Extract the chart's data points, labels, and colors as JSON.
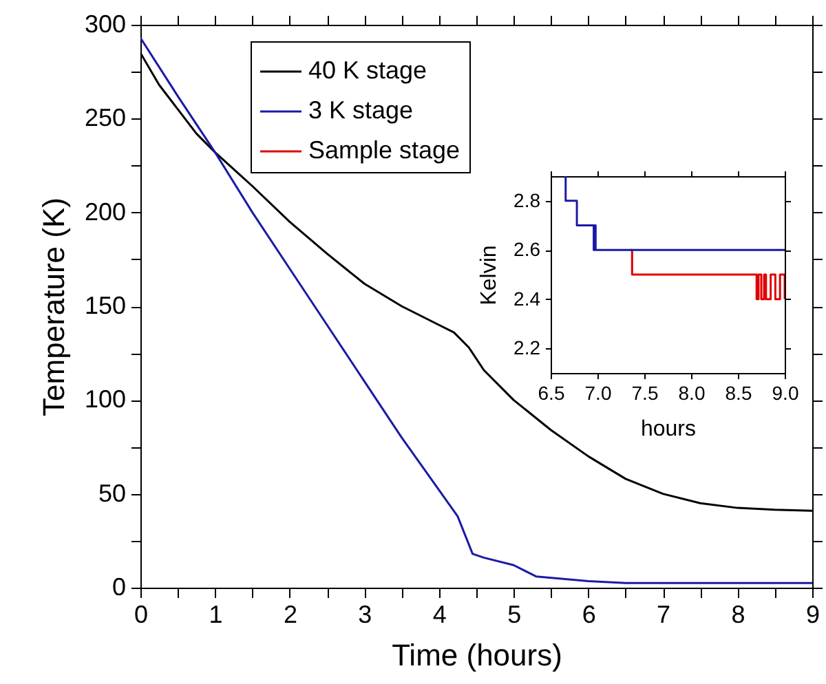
{
  "chart_data": [
    {
      "type": "line",
      "xlabel": "Time (hours)",
      "ylabel": "Temperature (K)",
      "xlim": [
        0,
        9
      ],
      "ylim": [
        0,
        300
      ],
      "xticks": [
        0,
        {
          "value": 0.5,
          "label": null
        },
        1,
        {
          "value": 1.5,
          "label": null
        },
        2,
        {
          "value": 2.5,
          "label": null
        },
        3,
        {
          "value": 3.5,
          "label": null
        },
        4,
        {
          "value": 4.5,
          "label": null
        },
        5,
        {
          "value": 5.5,
          "label": null
        },
        6,
        {
          "value": 6.5,
          "label": null
        },
        7,
        {
          "value": 7.5,
          "label": null
        },
        8,
        {
          "value": 8.5,
          "label": null
        },
        9
      ],
      "yticks": [
        0,
        {
          "value": 25,
          "label": null
        },
        50,
        {
          "value": 75,
          "label": null
        },
        100,
        {
          "value": 125,
          "label": null
        },
        150,
        {
          "value": 175,
          "label": null
        },
        200,
        {
          "value": 225,
          "label": null
        },
        250,
        {
          "value": 275,
          "label": null
        },
        300
      ],
      "legend": "top left",
      "series": [
        {
          "name": "40 K stage",
          "color": "#000000",
          "x": [
            0,
            0.25,
            0.5,
            0.75,
            1,
            1.5,
            2,
            2.5,
            3,
            3.5,
            4,
            4.2,
            4.4,
            4.6,
            5,
            5.5,
            6,
            6.5,
            7,
            7.5,
            8,
            8.5,
            9
          ],
          "values": [
            285,
            268,
            255,
            242,
            232,
            214,
            195,
            178,
            162,
            150,
            140,
            136,
            128,
            116,
            100,
            84,
            70,
            58,
            50,
            45,
            42.5,
            41.5,
            41
          ]
        },
        {
          "name": "3 K stage",
          "color": "#1a1aa6",
          "x": [
            0,
            0.5,
            1,
            1.5,
            2,
            2.5,
            3,
            3.5,
            4,
            4.25,
            4.35,
            4.45,
            4.6,
            5,
            5.3,
            6,
            6.5,
            7,
            9
          ],
          "values": [
            293,
            262,
            232,
            200,
            170,
            140,
            110,
            80,
            52,
            38,
            28,
            18,
            16,
            12,
            6,
            3.5,
            2.5,
            2.5,
            2.5
          ]
        },
        {
          "name": "Sample stage",
          "color": "#e00000"
        }
      ]
    },
    {
      "type": "step",
      "xlabel": "hours",
      "ylabel": "Kelvin",
      "xlim": [
        6.5,
        9
      ],
      "ylim": [
        2.1,
        2.9
      ],
      "xticks": [
        6.5,
        {
          "value": 7,
          "label": "7.0"
        },
        7.5,
        {
          "value": 8,
          "label": "8.0"
        },
        8.5,
        {
          "value": 9,
          "label": "9.0"
        }
      ],
      "yticks": [
        2.2,
        2.4,
        2.6,
        2.8
      ],
      "series": [
        {
          "color": "#e00000",
          "x": [
            7.35,
            7.37,
            8.7,
            8.72,
            8.75,
            8.78,
            8.8,
            8.85,
            8.9,
            8.95,
            9.0
          ],
          "values": [
            2.6,
            2.5,
            2.4,
            2.5,
            2.4,
            2.5,
            2.4,
            2.5,
            2.4,
            2.5,
            2.4
          ]
        },
        {
          "color": "#1a1aa6",
          "x": [
            6.65,
            6.66,
            6.78,
            6.96,
            6.97,
            6.98,
            7.0,
            9.0
          ],
          "values": [
            2.9,
            2.8,
            2.7,
            2.6,
            2.7,
            2.6,
            2.6,
            2.6
          ]
        }
      ]
    }
  ]
}
